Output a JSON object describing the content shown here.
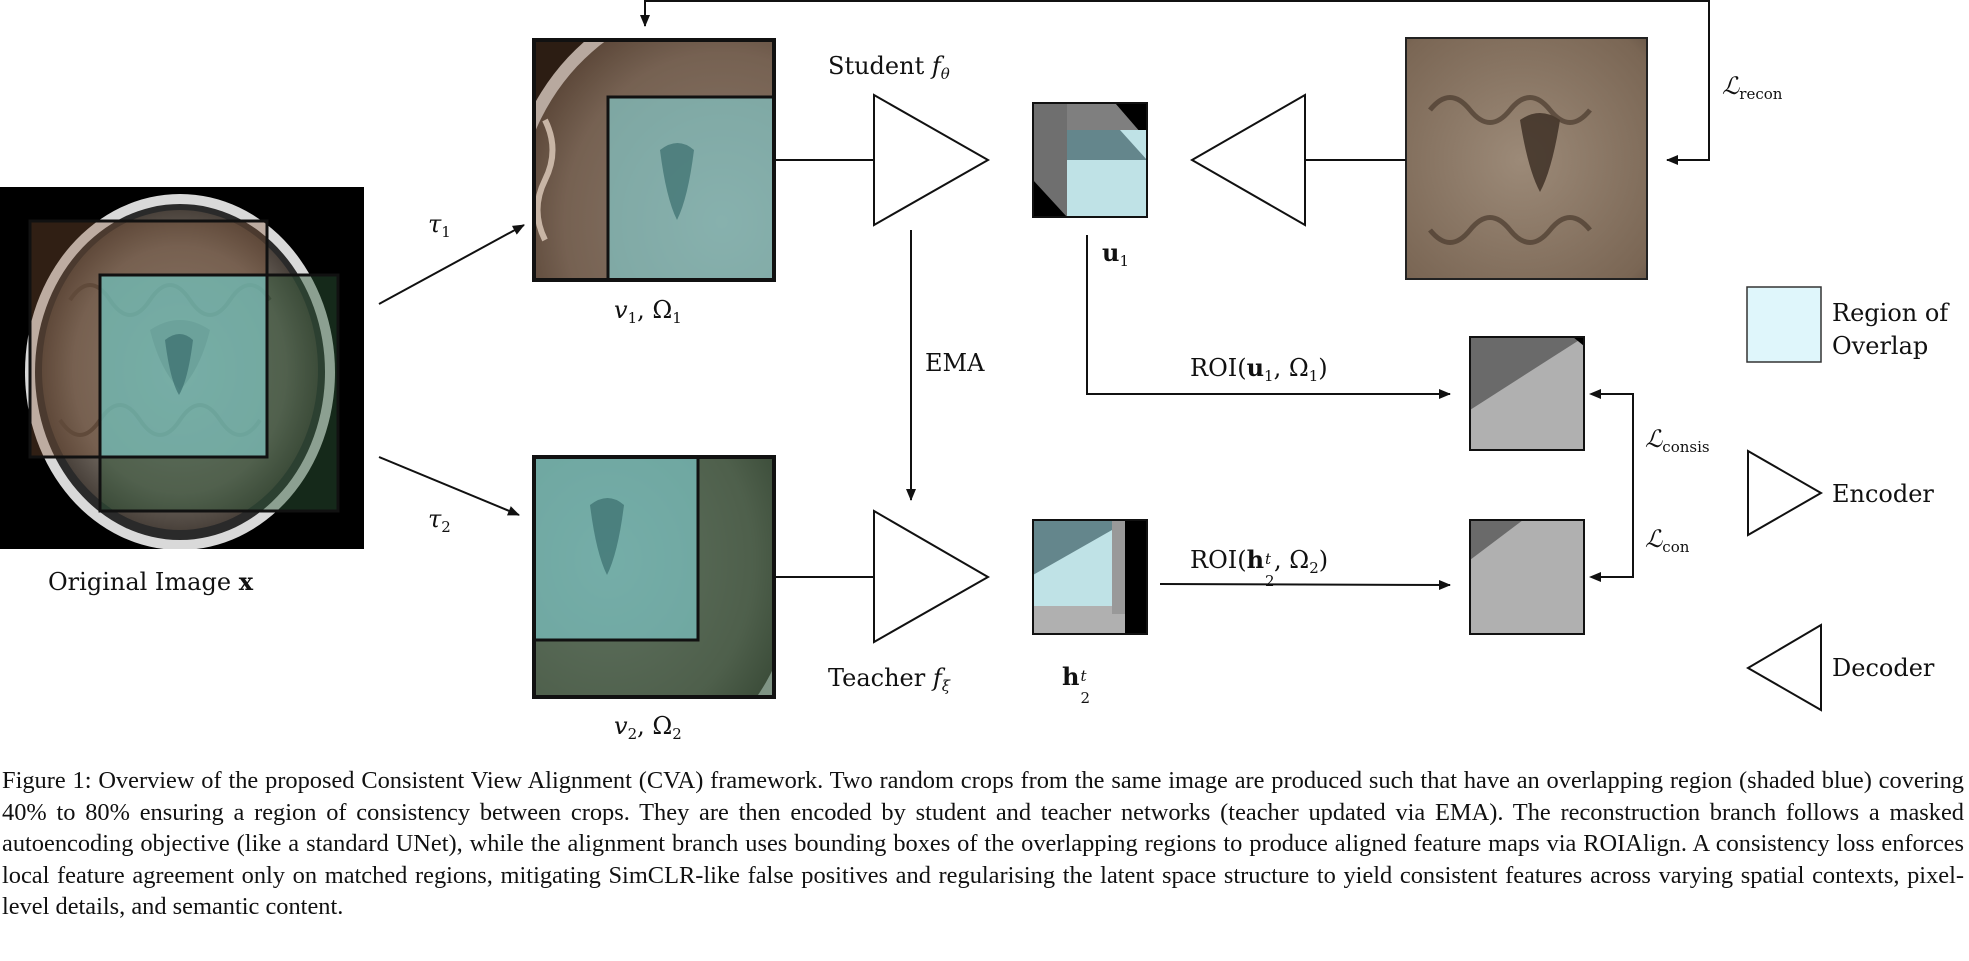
{
  "labels": {
    "original_image": "Original Image",
    "original_symbol": "x",
    "tau": "τ",
    "tau1_sub": "1",
    "tau2_sub": "2",
    "v1": "v",
    "v1_sub": "1",
    "omega1": "Ω",
    "omega1_sub": "1",
    "v2": "v",
    "v2_sub": "2",
    "omega2": "Ω",
    "omega2_sub": "2",
    "student": "Student",
    "student_f": "f",
    "student_sub": "θ",
    "teacher": "Teacher",
    "teacher_f": "f",
    "teacher_sub": "ξ",
    "ema": "EMA",
    "u1": "u",
    "u1_sub": "1",
    "h2": "h",
    "h2_sup": "t",
    "h2_sub": "2",
    "roi_u1": "ROI(",
    "roi_u1_bold": "u",
    "roi_u1_rest": ", Ω",
    "roi_u1_end": ")",
    "roi_h2": "ROI(",
    "roi_h2_bold": "h",
    "roi_h2_rest": ", Ω",
    "roi_h2_end": ")",
    "loss_symbol": "ℒ",
    "recon": "recon",
    "consis": "consis",
    "con": "con"
  },
  "legend": {
    "overlap_line1": "Region of",
    "overlap_line2": "Overlap",
    "encoder": "Encoder",
    "decoder": "Decoder"
  },
  "colors": {
    "overlap": "#dff6fb",
    "overlay_cyan": "#84d6d8",
    "feature_light": "#b0b0b0",
    "feature_dark": "#6a6a6a"
  },
  "caption": {
    "text": "Figure 1: Overview of the proposed Consistent View Alignment (CVA) framework. Two random crops from the same image are produced such that have an overlapping region (shaded blue) covering 40% to 80% ensuring a region of consistency between crops. They are then encoded by student and teacher networks (teacher updated via EMA). The reconstruction branch follows a masked autoencoding objective (like a standard UNet), while the alignment branch uses bounding boxes of the overlapping regions to produce aligned feature maps via ROIAlign. A consistency loss enforces local feature agreement only on matched regions, mitigating SimCLR-like false positives and regularising the latent space structure to yield consistent features across varying spatial contexts, pixel-level details, and semantic content."
  }
}
